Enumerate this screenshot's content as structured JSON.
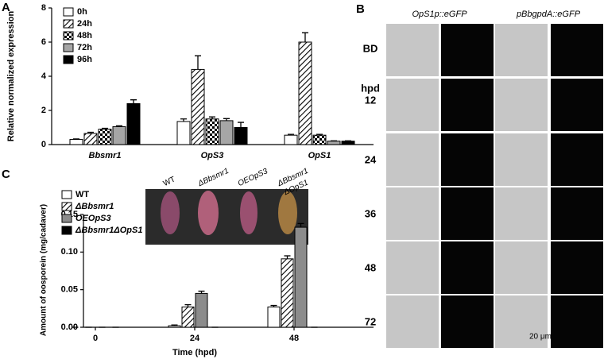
{
  "chart_data": [
    {
      "type": "bar",
      "panel": "A",
      "ylabel": "Relative normalized expression",
      "categories": [
        "Bbsmr1",
        "OpS3",
        "OpS1"
      ],
      "series": [
        {
          "name": "0h",
          "color": "#ffffff",
          "pattern": "none",
          "values": [
            0.3,
            1.35,
            0.55
          ],
          "errors": [
            0.03,
            0.15,
            0.05
          ]
        },
        {
          "name": "24h",
          "color": "#ffffff",
          "pattern": "hatch",
          "values": [
            0.65,
            4.4,
            6.0
          ],
          "errors": [
            0.07,
            0.8,
            0.55
          ]
        },
        {
          "name": "48h",
          "color": "#ffffff",
          "pattern": "check",
          "values": [
            0.9,
            1.5,
            0.55
          ],
          "errors": [
            0.05,
            0.12,
            0.05
          ]
        },
        {
          "name": "72h",
          "color": "#a6a6a6",
          "pattern": "none",
          "values": [
            1.05,
            1.4,
            0.2
          ],
          "errors": [
            0.05,
            0.12,
            0.02
          ]
        },
        {
          "name": "96h",
          "color": "#000000",
          "pattern": "none",
          "values": [
            2.4,
            1.0,
            0.2
          ],
          "errors": [
            0.22,
            0.3,
            0.02
          ]
        }
      ],
      "ylim": [
        0,
        8
      ],
      "yticks": [
        0,
        2,
        4,
        6,
        8
      ]
    },
    {
      "type": "bar",
      "panel": "C",
      "ylabel": "Amount of oosporein (mg/cadaver)",
      "xlabel": "Time (hpd)",
      "categories": [
        "0",
        "24",
        "48"
      ],
      "series": [
        {
          "name": "WT",
          "color": "#ffffff",
          "pattern": "none",
          "values": [
            0,
            0.002,
            0.027
          ],
          "errors": [
            0,
            0.001,
            0.002
          ]
        },
        {
          "name": "ΔBbsmr1",
          "color": "#ffffff",
          "pattern": "hatch",
          "values": [
            0,
            0.027,
            0.091
          ],
          "errors": [
            0,
            0.003,
            0.004
          ]
        },
        {
          "name": "OEOpS3",
          "color": "#8c8c8c",
          "pattern": "none",
          "values": [
            0,
            0.045,
            0.133
          ],
          "errors": [
            0,
            0.003,
            0.005
          ]
        },
        {
          "name": "ΔBbsmr1ΔOpS1",
          "color": "#000000",
          "pattern": "none",
          "values": [
            0,
            0,
            0
          ],
          "errors": [
            0,
            0,
            0
          ]
        }
      ],
      "ylim": [
        0,
        0.15
      ],
      "yticks": [
        {
          "value": 0,
          "label": "0.00"
        },
        0.05,
        {
          "value": 0.1,
          "label": "0.10"
        },
        0.15
      ],
      "inset_labels": [
        "WT",
        "ΔBbsmr1",
        "OEOpS3",
        "ΔBbsmr1",
        "ΔOpS1"
      ]
    }
  ],
  "panel_b": {
    "letter": "B",
    "columns": [
      "OpS1p::eGFP",
      "pBbgpdA::eGFP"
    ],
    "rows": [
      "BD",
      "12",
      "24",
      "36",
      "48",
      "72"
    ],
    "row_unit": "hpd",
    "scale": "20 μm"
  }
}
